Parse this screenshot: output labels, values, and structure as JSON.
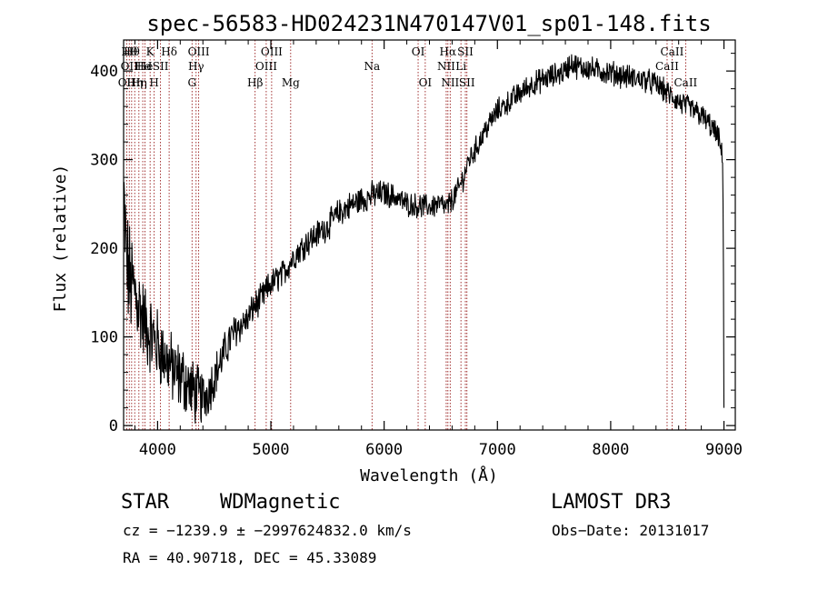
{
  "chart_data": {
    "type": "line",
    "title": "spec-56583-HD024231N470147V01_sp01-148.fits",
    "xlabel": "Wavelength (Å)",
    "ylabel": "Flux (relative)",
    "xlim": [
      3700,
      9100
    ],
    "ylim": [
      -5,
      435
    ],
    "xticks": [
      4000,
      5000,
      6000,
      7000,
      8000,
      9000
    ],
    "yticks": [
      0,
      100,
      200,
      300,
      400
    ],
    "grid": false,
    "line_color": "#000000",
    "marker_color": "#8b0000",
    "line_markers": [
      {
        "wavelength": 3727,
        "labels": [
          {
            "text": "OII",
            "row": 2
          }
        ]
      },
      {
        "wavelength": 3750,
        "labels": [
          {
            "text": "Hθ",
            "row": 0
          },
          {
            "text": "OII",
            "row": 1
          }
        ]
      },
      {
        "wavelength": 3771,
        "labels": [
          {
            "text": "Hθ",
            "row": 0
          }
        ]
      },
      {
        "wavelength": 3798,
        "labels": [
          {
            "text": "Hη",
            "row": 2
          }
        ]
      },
      {
        "wavelength": 3835,
        "labels": [
          {
            "text": "Hη",
            "row": 2
          }
        ]
      },
      {
        "wavelength": 3869,
        "labels": [
          {
            "text": "He",
            "row": 1
          }
        ]
      },
      {
        "wavelength": 3889,
        "labels": [
          {
            "text": "He",
            "row": 1
          }
        ]
      },
      {
        "wavelength": 3934,
        "labels": [
          {
            "text": "K",
            "row": 0
          },
          {
            "text": "I",
            "row": 1
          }
        ]
      },
      {
        "wavelength": 3970,
        "labels": [
          {
            "text": "H",
            "row": 2
          }
        ]
      },
      {
        "wavelength": 4026,
        "labels": [
          {
            "text": "SII",
            "row": 1
          }
        ]
      },
      {
        "wavelength": 4102,
        "labels": [
          {
            "text": "Hδ",
            "row": 0
          }
        ]
      },
      {
        "wavelength": 4304,
        "labels": [
          {
            "text": "G",
            "row": 2
          }
        ]
      },
      {
        "wavelength": 4340,
        "labels": [
          {
            "text": "Hγ",
            "row": 1
          }
        ]
      },
      {
        "wavelength": 4363,
        "labels": [
          {
            "text": "OIII",
            "row": 0
          }
        ]
      },
      {
        "wavelength": 4861,
        "labels": [
          {
            "text": "Hβ",
            "row": 2
          }
        ]
      },
      {
        "wavelength": 4959,
        "labels": [
          {
            "text": "OIII",
            "row": 1
          }
        ]
      },
      {
        "wavelength": 5007,
        "labels": [
          {
            "text": "OIII",
            "row": 0
          }
        ]
      },
      {
        "wavelength": 5175,
        "labels": [
          {
            "text": "Mg",
            "row": 2
          }
        ]
      },
      {
        "wavelength": 5893,
        "labels": [
          {
            "text": "Na",
            "row": 1
          }
        ]
      },
      {
        "wavelength": 6300,
        "labels": [
          {
            "text": "OI",
            "row": 0
          }
        ]
      },
      {
        "wavelength": 6363,
        "labels": [
          {
            "text": "OI",
            "row": 2
          }
        ]
      },
      {
        "wavelength": 6548,
        "labels": [
          {
            "text": "NII",
            "row": 1
          }
        ]
      },
      {
        "wavelength": 6563,
        "labels": [
          {
            "text": "Hα",
            "row": 0
          }
        ]
      },
      {
        "wavelength": 6583,
        "labels": [
          {
            "text": "NII",
            "row": 2
          }
        ]
      },
      {
        "wavelength": 6678,
        "labels": [
          {
            "text": "Li",
            "row": 1
          }
        ]
      },
      {
        "wavelength": 6717,
        "labels": [
          {
            "text": "SII",
            "row": 0
          }
        ]
      },
      {
        "wavelength": 6731,
        "labels": [
          {
            "text": "SII",
            "row": 2
          }
        ]
      },
      {
        "wavelength": 8498,
        "labels": [
          {
            "text": "CaII",
            "row": 1
          }
        ]
      },
      {
        "wavelength": 8542,
        "labels": [
          {
            "text": "CaII",
            "row": 0
          }
        ]
      },
      {
        "wavelength": 8662,
        "labels": [
          {
            "text": "CaII",
            "row": 2
          }
        ]
      }
    ],
    "spectrum_anchors": {
      "x": [
        3700,
        3730,
        3760,
        3800,
        3850,
        3900,
        3950,
        4000,
        4050,
        4100,
        4150,
        4200,
        4250,
        4300,
        4350,
        4400,
        4450,
        4500,
        4550,
        4600,
        4650,
        4700,
        4750,
        4800,
        4850,
        4900,
        4950,
        5000,
        5100,
        5200,
        5300,
        5400,
        5500,
        5600,
        5700,
        5800,
        5900,
        6000,
        6100,
        6200,
        6300,
        6400,
        6500,
        6550,
        6600,
        6650,
        6700,
        6750,
        6800,
        6900,
        7000,
        7100,
        7200,
        7300,
        7400,
        7500,
        7600,
        7650,
        7700,
        7800,
        7900,
        8000,
        8100,
        8200,
        8300,
        8400,
        8500,
        8600,
        8700,
        8800,
        8900,
        8950,
        8990,
        8995,
        9000
      ],
      "y": [
        250,
        180,
        160,
        150,
        130,
        110,
        100,
        90,
        80,
        70,
        60,
        55,
        50,
        40,
        35,
        30,
        40,
        55,
        70,
        85,
        100,
        110,
        115,
        120,
        135,
        140,
        150,
        160,
        170,
        190,
        205,
        215,
        225,
        240,
        248,
        255,
        260,
        262,
        258,
        250,
        248,
        247,
        250,
        245,
        255,
        265,
        280,
        300,
        310,
        335,
        355,
        365,
        375,
        385,
        390,
        395,
        400,
        410,
        405,
        403,
        400,
        398,
        395,
        392,
        390,
        385,
        375,
        365,
        358,
        350,
        335,
        325,
        300,
        200,
        20
      ],
      "noise": [
        60,
        60,
        55,
        50,
        45,
        40,
        40,
        38,
        35,
        35,
        35,
        35,
        35,
        32,
        30,
        28,
        25,
        22,
        20,
        20,
        18,
        18,
        16,
        15,
        15,
        15,
        15,
        14,
        14,
        14,
        14,
        14,
        14,
        14,
        14,
        14,
        14,
        13,
        12,
        12,
        12,
        12,
        12,
        12,
        12,
        12,
        12,
        12,
        12,
        12,
        12,
        12,
        12,
        12,
        12,
        12,
        12,
        12,
        12,
        12,
        12,
        12,
        12,
        12,
        12,
        12,
        12,
        12,
        12,
        12,
        12,
        12,
        10,
        5,
        0
      ]
    }
  },
  "info": {
    "class": "STAR",
    "subclass": "WDMagnetic",
    "survey": "LAMOST DR3",
    "cz": "cz = −1239.9 ± −2997624832.0 km/s",
    "obs_date": "Obs−Date: 20131017",
    "radec": "RA =  40.90718, DEC =  45.33089"
  }
}
